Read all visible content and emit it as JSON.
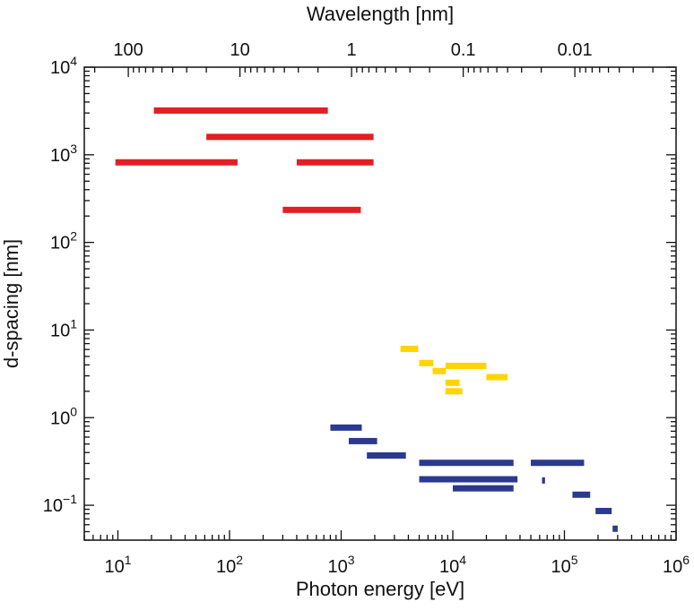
{
  "chart_data": {
    "type": "range-bar",
    "xscale": "log",
    "yscale": "log",
    "xlabel": "Photon energy [eV]",
    "ylabel": "d-spacing [nm]",
    "x2label": "Wavelength [nm]",
    "xlim": [
      5,
      1000000
    ],
    "ylim": [
      0.04,
      10000
    ],
    "grid": false,
    "x_ticks": [
      {
        "value": 10,
        "base": "10",
        "exp": "1"
      },
      {
        "value": 100,
        "base": "10",
        "exp": "2"
      },
      {
        "value": 1000,
        "base": "10",
        "exp": "3"
      },
      {
        "value": 10000,
        "base": "10",
        "exp": "4"
      },
      {
        "value": 100000,
        "base": "10",
        "exp": "5"
      },
      {
        "value": 1000000,
        "base": "10",
        "exp": "6"
      }
    ],
    "y_ticks": [
      {
        "value": 0.1,
        "base": "10",
        "exp": "−1"
      },
      {
        "value": 1,
        "base": "10",
        "exp": "0"
      },
      {
        "value": 10,
        "base": "10",
        "exp": "1"
      },
      {
        "value": 100,
        "base": "10",
        "exp": "2"
      },
      {
        "value": 1000,
        "base": "10",
        "exp": "3"
      },
      {
        "value": 10000,
        "base": "10",
        "exp": "4"
      }
    ],
    "wavelength_ticks": [
      {
        "value": 100,
        "label": "100"
      },
      {
        "value": 10,
        "label": "10"
      },
      {
        "value": 1,
        "label": "1"
      },
      {
        "value": 0.1,
        "label": "0.1"
      },
      {
        "value": 0.01,
        "label": "0.01"
      }
    ],
    "series": [
      {
        "color": "#e31e24",
        "bars": [
          {
            "x0": 21,
            "x1": 760,
            "y": 3200
          },
          {
            "x0": 62,
            "x1": 1950,
            "y": 1600
          },
          {
            "x0": 9.5,
            "x1": 118,
            "y": 820
          },
          {
            "x0": 400,
            "x1": 1950,
            "y": 820
          },
          {
            "x0": 300,
            "x1": 1500,
            "y": 235
          }
        ]
      },
      {
        "color": "#ffd400",
        "bars": [
          {
            "x0": 3400,
            "x1": 4900,
            "y": 6.1
          },
          {
            "x0": 5000,
            "x1": 6700,
            "y": 4.2
          },
          {
            "x0": 6600,
            "x1": 8700,
            "y": 3.4
          },
          {
            "x0": 8600,
            "x1": 20000,
            "y": 3.9
          },
          {
            "x0": 20000,
            "x1": 31000,
            "y": 2.9
          },
          {
            "x0": 8600,
            "x1": 11500,
            "y": 2.5
          },
          {
            "x0": 8600,
            "x1": 12200,
            "y": 2.0
          }
        ]
      },
      {
        "color": "#2b3990",
        "bars": [
          {
            "x0": 800,
            "x1": 1530,
            "y": 0.77
          },
          {
            "x0": 1170,
            "x1": 2100,
            "y": 0.54
          },
          {
            "x0": 1700,
            "x1": 3800,
            "y": 0.37
          },
          {
            "x0": 5000,
            "x1": 35000,
            "y": 0.305
          },
          {
            "x0": 50000,
            "x1": 150000,
            "y": 0.305
          },
          {
            "x0": 5000,
            "x1": 38000,
            "y": 0.198
          },
          {
            "x0": 63000,
            "x1": 67000,
            "y": 0.192
          },
          {
            "x0": 10000,
            "x1": 35000,
            "y": 0.156
          },
          {
            "x0": 118000,
            "x1": 170000,
            "y": 0.132
          },
          {
            "x0": 190000,
            "x1": 265000,
            "y": 0.086
          },
          {
            "x0": 270000,
            "x1": 300000,
            "y": 0.054
          }
        ]
      }
    ]
  }
}
